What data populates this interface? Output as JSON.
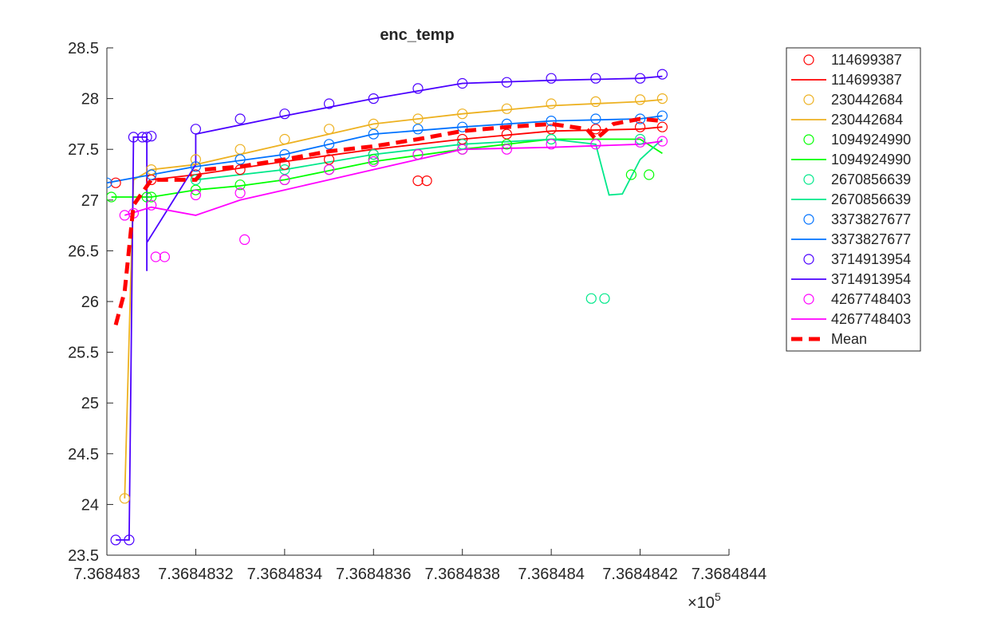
{
  "chart_data": {
    "type": "scatter",
    "title": "enc_temp",
    "xlabel": "",
    "ylabel": "",
    "xlim": [
      7.368483,
      7.3684844
    ],
    "ylim": [
      23.5,
      28.5
    ],
    "x_ticks": [
      7.368483,
      7.3684832,
      7.3684834,
      7.3684836,
      7.3684838,
      7.368484,
      7.3684842,
      7.3684844
    ],
    "x_tick_labels": [
      "7.368483",
      "7.3684832",
      "7.3684834",
      "7.3684836",
      "7.3684838",
      "7.368484",
      "7.3684842",
      "7.3684844"
    ],
    "y_ticks": [
      23.5,
      24,
      24.5,
      25,
      25.5,
      26,
      26.5,
      27,
      27.5,
      28,
      28.5
    ],
    "y_tick_labels": [
      "23.5",
      "24",
      "24.5",
      "25",
      "25.5",
      "26",
      "26.5",
      "27",
      "27.5",
      "28",
      "28.5"
    ],
    "x_exponent_base": "×10",
    "x_exponent_power": "5",
    "grid": false,
    "legend_position": "outside-top-right",
    "series": [
      {
        "name": "114699387",
        "color": "#ff0000",
        "points": [
          [
            7.36848302,
            27.17
          ],
          [
            7.3684831,
            27.2
          ],
          [
            7.3684832,
            27.25
          ],
          [
            7.3684833,
            27.3
          ],
          [
            7.3684834,
            27.35
          ],
          [
            7.3684835,
            27.4
          ],
          [
            7.3684836,
            27.45
          ],
          [
            7.3684837,
            27.19
          ],
          [
            7.36848372,
            27.19
          ],
          [
            7.3684838,
            27.6
          ],
          [
            7.3684839,
            27.65
          ],
          [
            7.368484,
            27.7
          ],
          [
            7.3684841,
            27.7
          ],
          [
            7.3684842,
            27.72
          ],
          [
            7.36848425,
            27.72
          ]
        ],
        "line": [
          [
            7.3684831,
            27.2
          ],
          [
            7.3684832,
            27.25
          ],
          [
            7.3684834,
            27.38
          ],
          [
            7.3684836,
            27.5
          ],
          [
            7.3684838,
            27.6
          ],
          [
            7.368484,
            27.68
          ],
          [
            7.3684842,
            27.7
          ],
          [
            7.36848425,
            27.72
          ]
        ]
      },
      {
        "name": "230442684",
        "color": "#edb120",
        "points": [
          [
            7.36848304,
            24.06
          ],
          [
            7.3684831,
            27.3
          ],
          [
            7.3684832,
            27.4
          ],
          [
            7.3684833,
            27.5
          ],
          [
            7.3684834,
            27.6
          ],
          [
            7.3684835,
            27.7
          ],
          [
            7.3684836,
            27.75
          ],
          [
            7.3684837,
            27.8
          ],
          [
            7.3684838,
            27.85
          ],
          [
            7.3684839,
            27.9
          ],
          [
            7.368484,
            27.95
          ],
          [
            7.3684841,
            27.97
          ],
          [
            7.3684842,
            27.99
          ],
          [
            7.36848425,
            28.0
          ]
        ],
        "line": [
          [
            7.36848304,
            24.06
          ],
          [
            7.36848306,
            27.2
          ],
          [
            7.3684831,
            27.3
          ],
          [
            7.3684832,
            27.35
          ],
          [
            7.3684834,
            27.55
          ],
          [
            7.3684835,
            27.65
          ],
          [
            7.3684836,
            27.75
          ],
          [
            7.3684838,
            27.85
          ],
          [
            7.368484,
            27.93
          ],
          [
            7.3684842,
            27.97
          ],
          [
            7.36848425,
            27.99
          ]
        ]
      },
      {
        "name": "1094924990",
        "color": "#00ff00",
        "points": [
          [
            7.36848301,
            27.03
          ],
          [
            7.36848309,
            27.03
          ],
          [
            7.3684831,
            27.03
          ],
          [
            7.3684832,
            27.1
          ],
          [
            7.3684833,
            27.15
          ],
          [
            7.3684834,
            27.2
          ],
          [
            7.3684835,
            27.3
          ],
          [
            7.3684836,
            27.4
          ],
          [
            7.3684837,
            27.45
          ],
          [
            7.3684838,
            27.5
          ],
          [
            7.3684839,
            27.55
          ],
          [
            7.368484,
            27.6
          ],
          [
            7.36848418,
            27.25
          ],
          [
            7.36848422,
            27.25
          ]
        ],
        "line": [
          [
            7.36848301,
            27.03
          ],
          [
            7.3684831,
            27.03
          ],
          [
            7.3684832,
            27.1
          ],
          [
            7.3684833,
            27.14
          ],
          [
            7.3684834,
            27.2
          ],
          [
            7.3684836,
            27.38
          ],
          [
            7.3684838,
            27.5
          ],
          [
            7.368484,
            27.6
          ],
          [
            7.3684842,
            27.6
          ],
          [
            7.36848425,
            27.46
          ]
        ]
      },
      {
        "name": "2670856639",
        "color": "#00e88a",
        "points": [
          [
            7.3684832,
            27.2
          ],
          [
            7.3684834,
            27.3
          ],
          [
            7.3684836,
            27.45
          ],
          [
            7.3684838,
            27.55
          ],
          [
            7.368484,
            27.6
          ],
          [
            7.36848409,
            26.03
          ],
          [
            7.36848412,
            26.03
          ],
          [
            7.3684842,
            27.6
          ]
        ],
        "line": [
          [
            7.3684832,
            27.2
          ],
          [
            7.3684834,
            27.3
          ],
          [
            7.3684836,
            27.45
          ],
          [
            7.3684838,
            27.55
          ],
          [
            7.368484,
            27.6
          ],
          [
            7.3684841,
            27.55
          ],
          [
            7.36848413,
            27.05
          ],
          [
            7.36848416,
            27.06
          ],
          [
            7.3684842,
            27.4
          ],
          [
            7.36848425,
            27.6
          ]
        ]
      },
      {
        "name": "3373827677",
        "color": "#0072ff",
        "points": [
          [
            7.368483,
            27.17
          ],
          [
            7.3684831,
            27.25
          ],
          [
            7.3684832,
            27.33
          ],
          [
            7.3684833,
            27.4
          ],
          [
            7.3684834,
            27.45
          ],
          [
            7.3684835,
            27.55
          ],
          [
            7.3684836,
            27.65
          ],
          [
            7.3684837,
            27.7
          ],
          [
            7.3684838,
            27.72
          ],
          [
            7.3684839,
            27.75
          ],
          [
            7.368484,
            27.78
          ],
          [
            7.3684841,
            27.8
          ],
          [
            7.3684842,
            27.8
          ],
          [
            7.36848425,
            27.83
          ]
        ],
        "line": [
          [
            7.368483,
            27.17
          ],
          [
            7.3684831,
            27.25
          ],
          [
            7.3684832,
            27.33
          ],
          [
            7.3684834,
            27.45
          ],
          [
            7.3684836,
            27.65
          ],
          [
            7.3684838,
            27.72
          ],
          [
            7.368484,
            27.78
          ],
          [
            7.3684842,
            27.8
          ],
          [
            7.36848425,
            27.83
          ]
        ]
      },
      {
        "name": "3714913954",
        "color": "#4b00ff",
        "points": [
          [
            7.36848302,
            23.65
          ],
          [
            7.36848305,
            23.65
          ],
          [
            7.36848306,
            27.62
          ],
          [
            7.36848308,
            27.62
          ],
          [
            7.36848309,
            27.62
          ],
          [
            7.3684831,
            27.63
          ],
          [
            7.3684832,
            27.7
          ],
          [
            7.3684833,
            27.8
          ],
          [
            7.3684834,
            27.85
          ],
          [
            7.3684835,
            27.95
          ],
          [
            7.3684836,
            28.0
          ],
          [
            7.3684837,
            28.1
          ],
          [
            7.3684838,
            28.15
          ],
          [
            7.3684839,
            28.16
          ],
          [
            7.368484,
            28.2
          ],
          [
            7.3684841,
            28.2
          ],
          [
            7.3684842,
            28.2
          ],
          [
            7.36848425,
            28.24
          ]
        ],
        "line": [
          [
            7.36848302,
            23.65
          ],
          [
            7.36848305,
            23.65
          ],
          [
            7.36848306,
            27.62
          ],
          [
            7.36848309,
            27.62
          ],
          [
            7.36848309,
            26.3
          ],
          [
            7.36848309,
            26.58
          ],
          [
            7.3684832,
            27.35
          ],
          [
            7.3684832,
            27.65
          ],
          [
            7.3684834,
            27.83
          ],
          [
            7.3684836,
            28.0
          ],
          [
            7.3684838,
            28.15
          ],
          [
            7.368484,
            28.18
          ],
          [
            7.3684842,
            28.2
          ],
          [
            7.36848425,
            28.22
          ]
        ]
      },
      {
        "name": "4267748403",
        "color": "#ff00ff",
        "points": [
          [
            7.36848304,
            26.85
          ],
          [
            7.36848306,
            26.87
          ],
          [
            7.3684831,
            26.95
          ],
          [
            7.36848311,
            26.44
          ],
          [
            7.36848313,
            26.44
          ],
          [
            7.3684832,
            27.05
          ],
          [
            7.3684833,
            27.07
          ],
          [
            7.36848331,
            26.61
          ],
          [
            7.3684834,
            27.2
          ],
          [
            7.3684835,
            27.3
          ],
          [
            7.3684836,
            27.38
          ],
          [
            7.3684837,
            27.45
          ],
          [
            7.3684838,
            27.5
          ],
          [
            7.3684839,
            27.5
          ],
          [
            7.368484,
            27.55
          ],
          [
            7.3684841,
            27.55
          ],
          [
            7.3684842,
            27.57
          ],
          [
            7.36848425,
            27.58
          ]
        ],
        "line": [
          [
            7.36848304,
            26.85
          ],
          [
            7.3684831,
            26.93
          ],
          [
            7.3684832,
            26.85
          ],
          [
            7.3684833,
            27.0
          ],
          [
            7.3684834,
            27.1
          ],
          [
            7.3684835,
            27.2
          ],
          [
            7.3684836,
            27.3
          ],
          [
            7.3684837,
            27.4
          ],
          [
            7.3684838,
            27.5
          ],
          [
            7.368484,
            27.52
          ],
          [
            7.3684842,
            27.55
          ],
          [
            7.36848425,
            27.58
          ]
        ]
      }
    ],
    "mean": {
      "name": "Mean",
      "color": "#ff0000",
      "line": [
        [
          7.36848302,
          25.77
        ],
        [
          7.36848304,
          26.1
        ],
        [
          7.36848306,
          26.95
        ],
        [
          7.3684831,
          27.2
        ],
        [
          7.3684832,
          27.2
        ],
        [
          7.36848322,
          27.3
        ],
        [
          7.3684833,
          27.33
        ],
        [
          7.3684834,
          27.4
        ],
        [
          7.3684835,
          27.48
        ],
        [
          7.3684836,
          27.53
        ],
        [
          7.3684837,
          27.6
        ],
        [
          7.3684838,
          27.68
        ],
        [
          7.3684839,
          27.72
        ],
        [
          7.368484,
          27.75
        ],
        [
          7.36848408,
          27.7
        ],
        [
          7.3684841,
          27.6
        ],
        [
          7.36848414,
          27.75
        ],
        [
          7.3684842,
          27.8
        ],
        [
          7.36848425,
          27.78
        ]
      ]
    }
  }
}
